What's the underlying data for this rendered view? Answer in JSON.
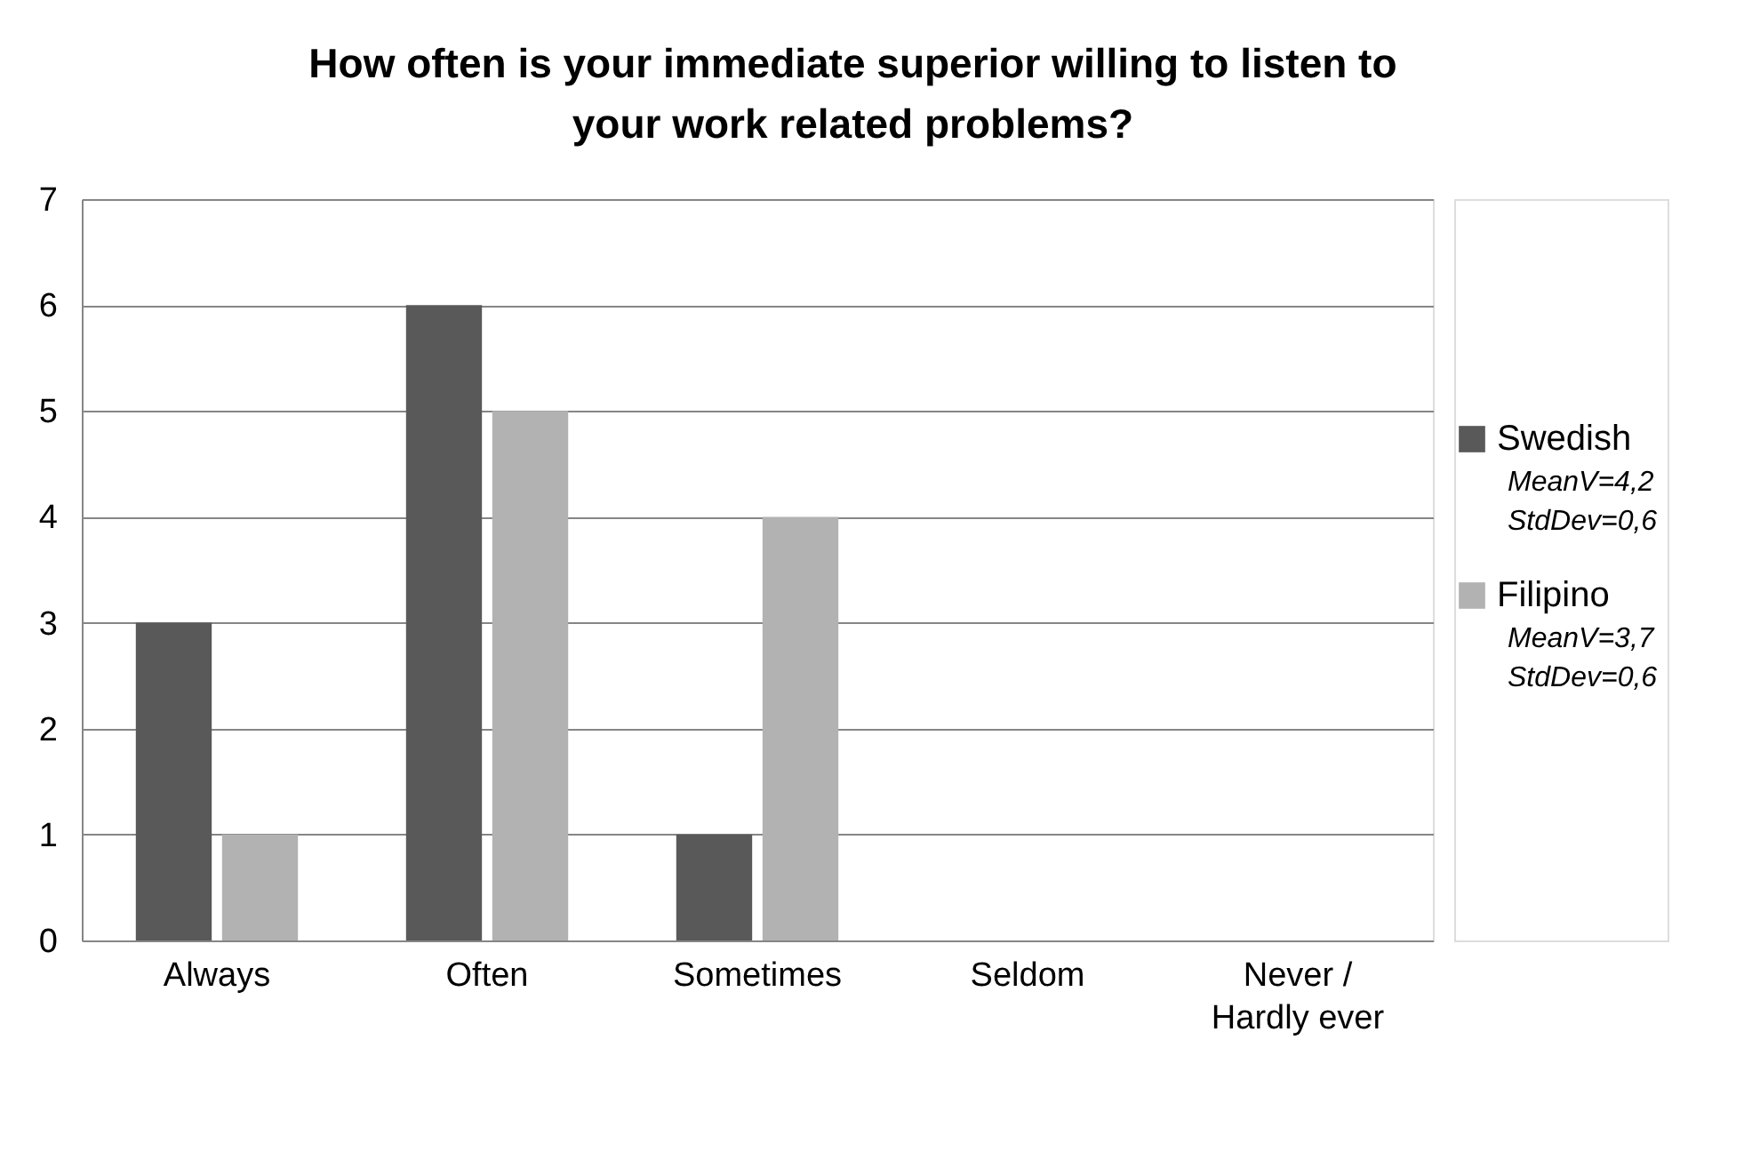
{
  "chart_data": {
    "type": "bar",
    "title": "How often is your immediate superior willing to listen to your work related problems?",
    "categories": [
      "Always",
      "Often",
      "Sometimes",
      "Seldom",
      "Never / Hardly ever"
    ],
    "series": [
      {
        "name": "Swedish",
        "color": "#595959",
        "values": [
          3,
          6,
          1,
          0,
          0
        ]
      },
      {
        "name": "Filipino",
        "color": "#b2b2b2",
        "values": [
          1,
          5,
          4,
          0,
          0
        ]
      }
    ],
    "annotations": [
      "MeanV=4,2",
      "StdDev=0,6",
      "MeanV=3,7",
      "StdDev=0,6"
    ],
    "ylim": [
      0,
      7
    ],
    "yticks": [
      0,
      1,
      2,
      3,
      4,
      5,
      6,
      7
    ],
    "grid": "y",
    "legend": "right"
  }
}
